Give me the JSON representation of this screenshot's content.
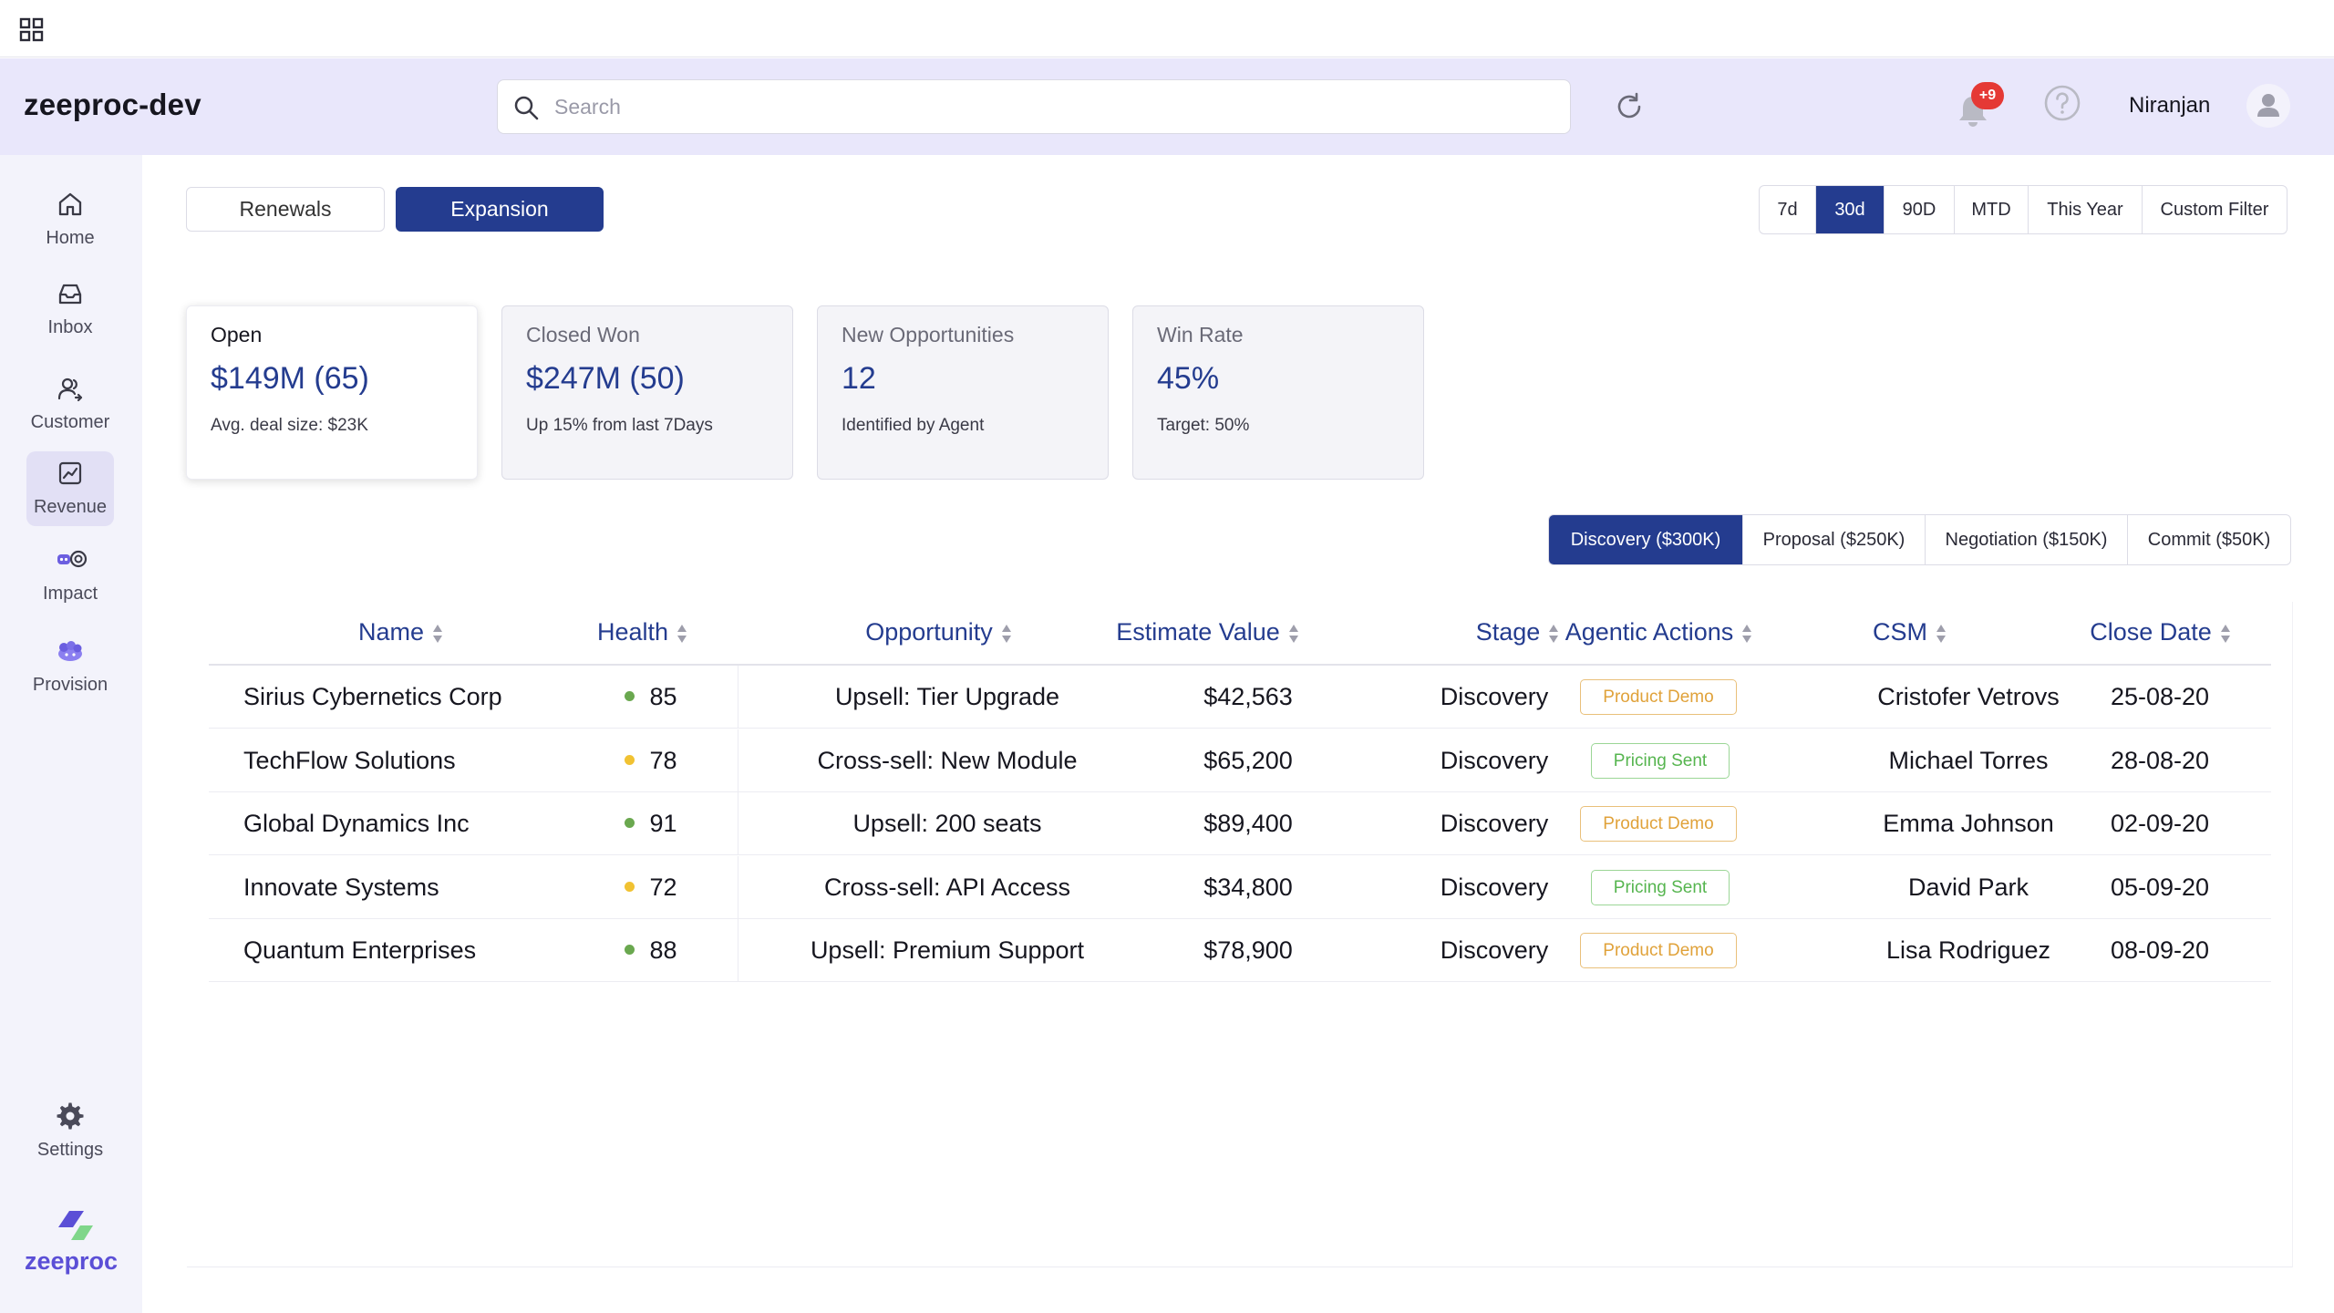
{
  "header": {
    "app_title": "zeeproc-dev",
    "search_placeholder": "Search",
    "notification_badge": "+9",
    "user_name": "Niranjan"
  },
  "sidebar": {
    "items": [
      {
        "label": "Home",
        "icon": "home-icon"
      },
      {
        "label": "Inbox",
        "icon": "inbox-icon"
      },
      {
        "label": "Customer",
        "icon": "customer-icon"
      },
      {
        "label": "Revenue",
        "icon": "revenue-icon",
        "active": true
      },
      {
        "label": "Impact",
        "icon": "impact-icon"
      },
      {
        "label": "Provision",
        "icon": "provision-icon"
      }
    ],
    "settings_label": "Settings",
    "logo_text": "zeeproc"
  },
  "tabs": [
    {
      "label": "Renewals",
      "active": false
    },
    {
      "label": "Expansion",
      "active": true
    }
  ],
  "date_ranges": [
    {
      "label": "7d",
      "active": false
    },
    {
      "label": "30d",
      "active": true
    },
    {
      "label": "90D",
      "active": false
    },
    {
      "label": "MTD",
      "active": false
    },
    {
      "label": "This Year",
      "active": false
    },
    {
      "label": "Custom Filter",
      "active": false
    }
  ],
  "cards": [
    {
      "title": "Open",
      "value": "$149M (65)",
      "sub": "Avg. deal size: $23K",
      "active": true
    },
    {
      "title": "Closed Won",
      "value": "$247M (50)",
      "sub": "Up 15% from last 7Days",
      "active": false
    },
    {
      "title": "New Opportunities",
      "value": "12",
      "sub": "Identified by Agent",
      "active": false
    },
    {
      "title": "Win Rate",
      "value": "45%",
      "sub": "Target: 50%",
      "active": false
    }
  ],
  "stages": [
    {
      "label": "Discovery ($300K)",
      "active": true
    },
    {
      "label": "Proposal ($250K)",
      "active": false
    },
    {
      "label": "Negotiation ($150K)",
      "active": false
    },
    {
      "label": "Commit ($50K)",
      "active": false
    }
  ],
  "table": {
    "columns": [
      "Name",
      "Health",
      "Opportunity",
      "Estimate Value",
      "Stage",
      "Agentic Actions",
      "CSM",
      "Close Date"
    ],
    "rows": [
      {
        "name": "Sirius Cybernetics Corp",
        "health": "85",
        "health_color": "#6aa84f",
        "opportunity": "Upsell: Tier Upgrade",
        "value": "$42,563",
        "stage": "Discovery",
        "action": "Product Demo",
        "action_type": "demo",
        "csm": "Cristofer Vetrovs",
        "close_date": "25-08-20"
      },
      {
        "name": "TechFlow Solutions",
        "health": "78",
        "health_color": "#f1c232",
        "opportunity": "Cross-sell: New Module",
        "value": "$65,200",
        "stage": "Discovery",
        "action": "Pricing Sent",
        "action_type": "pricing",
        "csm": "Michael Torres",
        "close_date": "28-08-20"
      },
      {
        "name": "Global Dynamics Inc",
        "health": "91",
        "health_color": "#6aa84f",
        "opportunity": "Upsell: 200 seats",
        "value": "$89,400",
        "stage": "Discovery",
        "action": "Product Demo",
        "action_type": "demo",
        "csm": "Emma Johnson",
        "close_date": "02-09-20"
      },
      {
        "name": "Innovate Systems",
        "health": "72",
        "health_color": "#f1c232",
        "opportunity": "Cross-sell: API Access",
        "value": "$34,800",
        "stage": "Discovery",
        "action": "Pricing Sent",
        "action_type": "pricing",
        "csm": "David Park",
        "close_date": "05-09-20"
      },
      {
        "name": "Quantum Enterprises",
        "health": "88",
        "health_color": "#6aa84f",
        "opportunity": "Upsell: Premium Support",
        "value": "$78,900",
        "stage": "Discovery",
        "action": "Product Demo",
        "action_type": "demo",
        "csm": "Lisa Rodriguez",
        "close_date": "08-09-20"
      }
    ]
  }
}
